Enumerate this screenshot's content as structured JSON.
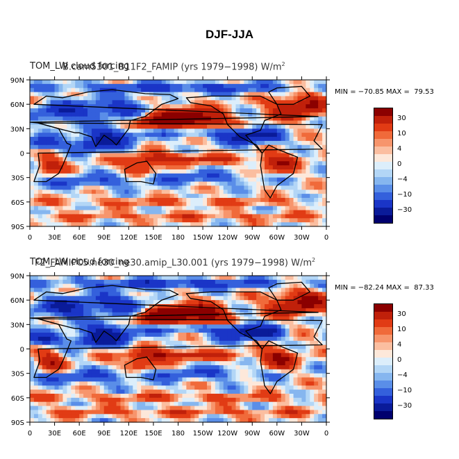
{
  "title": "DJF-JJA",
  "axes": {
    "lat_ticks": [
      "90N",
      "60N",
      "30N",
      "0",
      "30S",
      "60S",
      "90S"
    ],
    "lon_ticks": [
      "0",
      "30E",
      "60E",
      "90E",
      "120E",
      "150E",
      "180",
      "150W",
      "120W",
      "90W",
      "60W",
      "30W",
      "0"
    ]
  },
  "colorbar": {
    "colors": [
      "#8b0000",
      "#c0200a",
      "#e13b14",
      "#f06a3a",
      "#f7956c",
      "#fbbea0",
      "#fde8da",
      "#dceefb",
      "#b3d6f6",
      "#86b6ef",
      "#5a8ee8",
      "#3460dc",
      "#1a35c7",
      "#0a1b99",
      "#00006e"
    ],
    "labels": [
      "30",
      "10",
      "4",
      "0",
      "-4",
      "-10",
      "-30"
    ]
  },
  "panels": [
    {
      "title_left": "TOM_LW cloud forcing",
      "title_mid": "B.cam5301_B11F2_FAMIP (yrs 1979−1998)",
      "units": "W/m",
      "units_sup": "2",
      "min_label": "MIN = −70.85",
      "max_label": "MAX =  79.53"
    },
    {
      "title_left": "TOM_LW cloud forcing",
      "title_mid": "F2_FAMIPC5.ne30_ne30.amip_L30.001 (yrs 1979−1998)",
      "units": "W/m",
      "units_sup": "2",
      "min_label": "MIN = −82.24",
      "max_label": "MAX =  87.33"
    }
  ],
  "chart_data": {
    "type": "heatmap",
    "title": "DJF-JJA",
    "projection": "cylindrical equidistant",
    "x_range": [
      0,
      360
    ],
    "y_range": [
      -90,
      90
    ],
    "contour_levels": [
      -30,
      -10,
      -4,
      0,
      4,
      10,
      30
    ],
    "panels": [
      {
        "case": "B.cam5301_B11F2_FAMIP",
        "years": "1979-1998",
        "min": -70.85,
        "max": 79.53
      },
      {
        "case": "F2_FAMIPC5.ne30_ne30.amip_L30.001",
        "years": "1979-1998",
        "min": -82.24,
        "max": 87.33
      }
    ]
  }
}
